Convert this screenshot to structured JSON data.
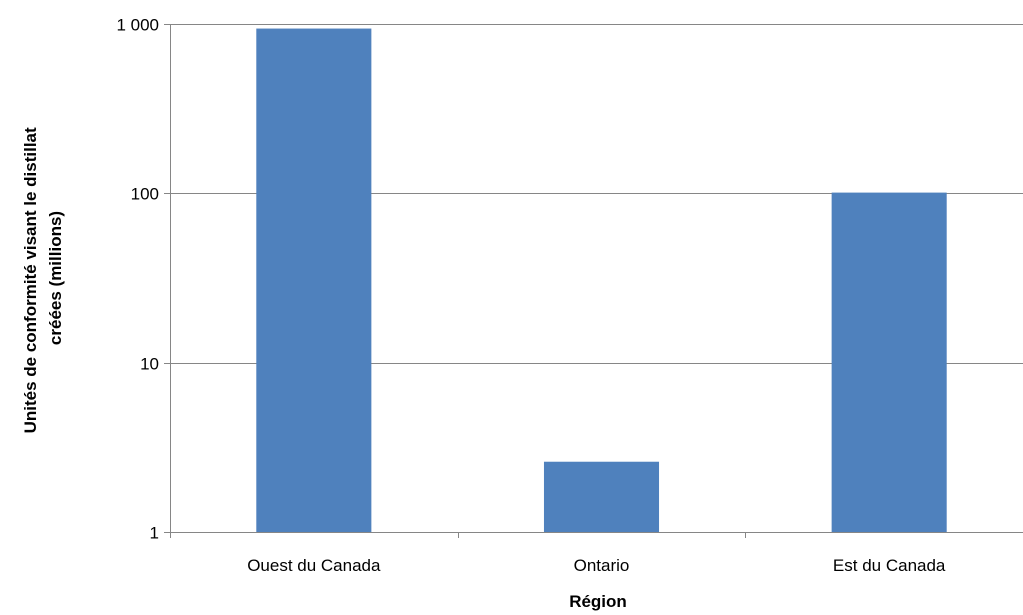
{
  "chart_data": {
    "type": "bar",
    "title": "",
    "xlabel": "Région",
    "ylabel_lines": [
      "Unités de conformité visant le distillat",
      "créées  (millions)"
    ],
    "yscale": "log",
    "ylim": [
      1,
      1000
    ],
    "yticks": [
      {
        "value": 1,
        "label": "1"
      },
      {
        "value": 10,
        "label": "10"
      },
      {
        "value": 100,
        "label": "100"
      },
      {
        "value": 1000,
        "label": "1 000"
      }
    ],
    "categories": [
      "Ouest du Canada",
      "Ontario",
      "Est du Canada"
    ],
    "values": [
      940,
      2.6,
      101
    ],
    "grid": true,
    "legend": "none",
    "colors": {
      "bar": "#4f81bd",
      "grid": "#868686",
      "axis": "#868686",
      "text": "#000000"
    }
  }
}
